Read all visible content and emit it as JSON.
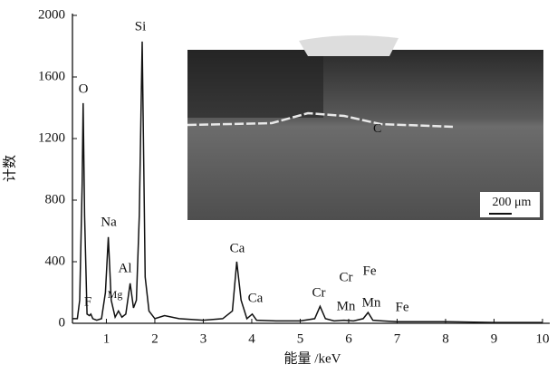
{
  "chart_data": {
    "type": "line",
    "x_label": "能量 /keV",
    "y_label": "计数",
    "x": [
      0.3,
      0.4,
      0.45,
      0.5,
      0.52,
      0.55,
      0.6,
      0.65,
      0.68,
      0.72,
      0.8,
      0.9,
      0.98,
      1.04,
      1.1,
      1.18,
      1.25,
      1.32,
      1.4,
      1.49,
      1.56,
      1.62,
      1.68,
      1.74,
      1.8,
      1.88,
      2.0,
      2.2,
      2.5,
      3.0,
      3.4,
      3.6,
      3.69,
      3.78,
      3.9,
      4.01,
      4.1,
      4.5,
      5.0,
      5.3,
      5.41,
      5.52,
      5.7,
      5.9,
      6.1,
      6.3,
      6.4,
      6.5,
      6.7,
      7.0,
      8.0,
      9.0,
      10.0
    ],
    "values": [
      30,
      30,
      150,
      900,
      1430,
      700,
      60,
      50,
      60,
      30,
      20,
      30,
      200,
      560,
      150,
      40,
      80,
      40,
      60,
      260,
      100,
      150,
      700,
      1830,
      300,
      80,
      30,
      50,
      30,
      20,
      30,
      80,
      400,
      150,
      30,
      60,
      20,
      15,
      15,
      30,
      110,
      30,
      15,
      20,
      15,
      30,
      70,
      20,
      15,
      10,
      10,
      5,
      5
    ],
    "color": "#111111",
    "xlim": [
      0.3,
      10.15
    ],
    "ylim": [
      0,
      2000
    ],
    "xticks": [
      1,
      2,
      3,
      4,
      5,
      6,
      7,
      8,
      9,
      10
    ],
    "yticks": [
      0,
      400,
      800,
      1200,
      1600,
      2000
    ],
    "annotations": [
      "O",
      "Si",
      "Na",
      "Al",
      "Mg",
      "F",
      "Ca",
      "Ca",
      "Cr",
      "Cr",
      "Fe",
      "Mn",
      "Mn",
      "Fe"
    ],
    "inset": {
      "labels": [
        "C",
        "200 μm"
      ]
    }
  }
}
